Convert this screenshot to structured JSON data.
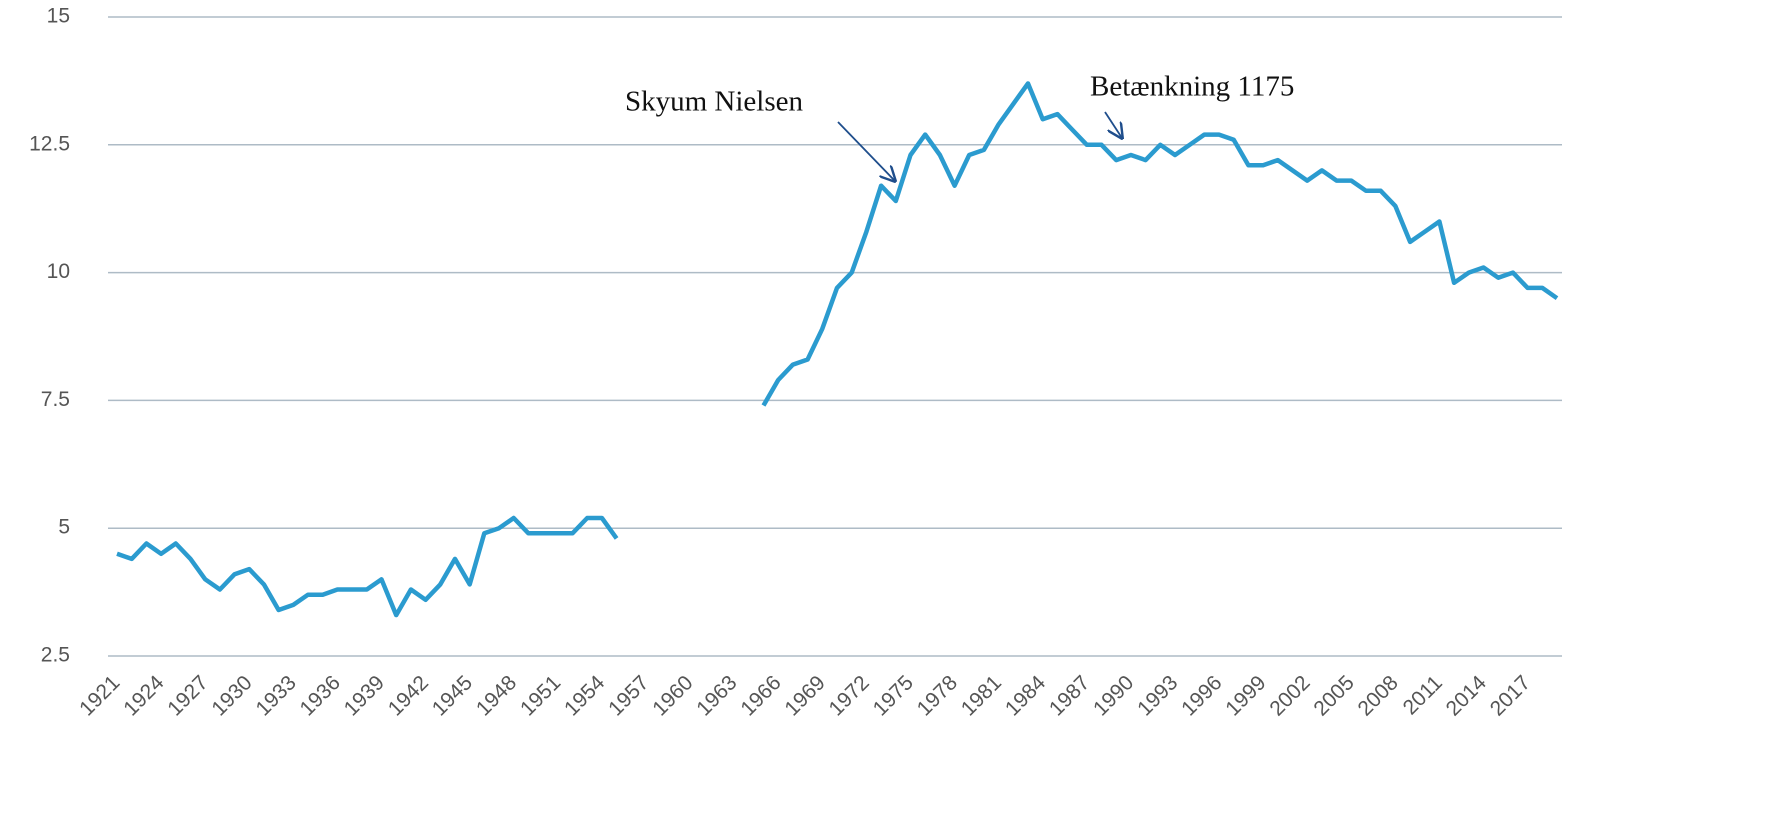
{
  "chart_data": {
    "type": "line",
    "x": [
      1921,
      1922,
      1923,
      1924,
      1925,
      1926,
      1927,
      1928,
      1929,
      1930,
      1931,
      1932,
      1933,
      1934,
      1935,
      1936,
      1937,
      1938,
      1939,
      1940,
      1941,
      1942,
      1943,
      1944,
      1945,
      1946,
      1947,
      1948,
      1949,
      1950,
      1951,
      1952,
      1953,
      1954,
      1955,
      1956,
      1957,
      1958,
      1959,
      1960,
      1961,
      1962,
      1963,
      1964,
      1965,
      1966,
      1967,
      1968,
      1969,
      1970,
      1971,
      1972,
      1973,
      1974,
      1975,
      1976,
      1977,
      1978,
      1979,
      1980,
      1981,
      1982,
      1983,
      1984,
      1985,
      1986,
      1987,
      1988,
      1989,
      1990,
      1991,
      1992,
      1993,
      1994,
      1995,
      1996,
      1997,
      1998,
      1999,
      2000,
      2001,
      2002,
      2003,
      2004,
      2005,
      2006,
      2007,
      2008,
      2009,
      2010,
      2011,
      2012,
      2013,
      2014,
      2015,
      2016,
      2017,
      2018,
      2019
    ],
    "series": [
      {
        "color": "#2b9bcf",
        "values": [
          4.5,
          4.4,
          4.7,
          4.5,
          4.7,
          4.4,
          4.0,
          3.8,
          4.1,
          4.2,
          3.9,
          3.4,
          3.5,
          3.7,
          3.7,
          3.8,
          3.8,
          3.8,
          4.0,
          3.3,
          3.8,
          3.6,
          3.9,
          4.4,
          3.9,
          4.9,
          5.0,
          5.2,
          4.9,
          4.9,
          4.9,
          4.9,
          5.2,
          5.2,
          4.8,
          null,
          null,
          null,
          null,
          null,
          null,
          null,
          null,
          null,
          7.4,
          7.9,
          8.2,
          8.3,
          8.9,
          9.7,
          10.0,
          10.8,
          11.7,
          11.4,
          12.3,
          12.7,
          12.3,
          11.7,
          12.3,
          12.4,
          12.9,
          13.3,
          13.7,
          13.0,
          13.1,
          12.8,
          12.5,
          12.5,
          12.2,
          12.3,
          12.2,
          12.5,
          12.3,
          12.5,
          12.7,
          12.7,
          12.6,
          12.1,
          12.1,
          12.2,
          12.0,
          11.8,
          12.0,
          11.8,
          11.8,
          11.6,
          11.6,
          11.3,
          10.6,
          10.8,
          11.0,
          9.8,
          10.0,
          10.1,
          9.9,
          10.0,
          9.7,
          9.7,
          9.5
        ]
      }
    ],
    "xlim": [
      1921,
      2019
    ],
    "xticks": [
      1921,
      1924,
      1927,
      1930,
      1933,
      1936,
      1939,
      1942,
      1945,
      1948,
      1951,
      1954,
      1957,
      1960,
      1963,
      1966,
      1969,
      1972,
      1975,
      1978,
      1981,
      1984,
      1987,
      1990,
      1993,
      1996,
      1999,
      2002,
      2005,
      2008,
      2011,
      2014,
      2017
    ],
    "ylim": [
      2.5,
      15
    ],
    "yticks": [
      2.5,
      5,
      7.5,
      10,
      12.5,
      15
    ],
    "grid": true,
    "annotations": [
      {
        "text": "Skyum Nielsen"
      },
      {
        "text": "Betænkning 1175"
      }
    ]
  }
}
